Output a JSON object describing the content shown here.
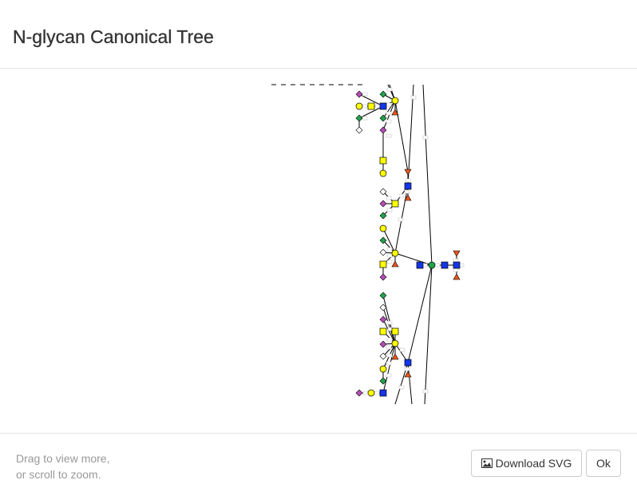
{
  "dialog": {
    "title": "N-glycan Canonical Tree"
  },
  "footer": {
    "hint_line1": "Drag to view more,",
    "hint_line2": "or scroll to zoom.",
    "download_label": "Download SVG",
    "ok_label": "Ok"
  },
  "icons": {
    "download": "image-icon"
  },
  "colors": {
    "glcnac": "#1436e8",
    "galactose": "#ffff00",
    "mannose": "#1fa54a",
    "fucose": "#e8561c",
    "neuac": "#b84db6",
    "border": "#e5e5e5"
  }
}
